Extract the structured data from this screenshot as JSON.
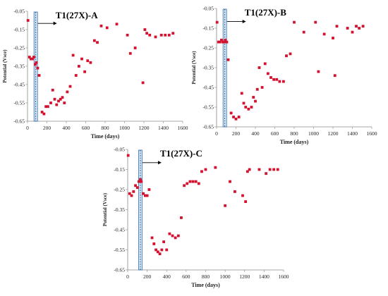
{
  "chart_data": [
    {
      "type": "scatter",
      "title": "T1(27X)-A",
      "xlabel": "Time (days)",
      "ylabel": "Potential (Vsce)",
      "xlim": [
        0,
        1600
      ],
      "ylim": [
        -0.65,
        -0.05
      ],
      "xticks": [
        0,
        200,
        400,
        600,
        800,
        1000,
        1200,
        1400,
        1600
      ],
      "yticks": [
        -0.05,
        -0.15,
        -0.25,
        -0.35,
        -0.45,
        -0.55,
        -0.65
      ],
      "marker_day": 85,
      "color": "#d2122e",
      "x": [
        5,
        20,
        35,
        50,
        65,
        80,
        90,
        105,
        120,
        150,
        170,
        190,
        210,
        240,
        260,
        280,
        300,
        320,
        340,
        360,
        380,
        410,
        440,
        470,
        500,
        530,
        560,
        590,
        620,
        650,
        690,
        720,
        760,
        820,
        920,
        1030,
        1060,
        1110,
        1190,
        1210,
        1230,
        1260,
        1320,
        1380,
        1420,
        1460,
        1500
      ],
      "y": [
        -0.1,
        -0.3,
        -0.31,
        -0.31,
        -0.3,
        -0.34,
        -0.33,
        -0.36,
        -0.4,
        -0.6,
        -0.61,
        -0.57,
        -0.57,
        -0.55,
        -0.48,
        -0.53,
        -0.56,
        -0.54,
        -0.53,
        -0.52,
        -0.55,
        -0.49,
        -0.46,
        -0.29,
        -0.4,
        -0.35,
        -0.31,
        -0.38,
        -0.32,
        -0.33,
        -0.21,
        -0.22,
        -0.13,
        -0.14,
        -0.12,
        -0.18,
        -0.28,
        -0.25,
        -0.44,
        -0.15,
        -0.17,
        -0.18,
        -0.19,
        -0.18,
        -0.18,
        -0.18,
        -0.17
      ]
    },
    {
      "type": "scatter",
      "title": "T1(27X)-B",
      "xlabel": "Time (days)",
      "ylabel": "Potential (Vsce)",
      "xlim": [
        0,
        1600
      ],
      "ylim": [
        -0.65,
        -0.05
      ],
      "xticks": [
        0,
        200,
        400,
        600,
        800,
        1000,
        1200,
        1400,
        1600
      ],
      "yticks": [
        -0.05,
        -0.15,
        -0.25,
        -0.35,
        -0.45,
        -0.55,
        -0.65
      ],
      "marker_day": 85,
      "color": "#d2122e",
      "x": [
        5,
        20,
        35,
        50,
        65,
        80,
        90,
        105,
        120,
        150,
        175,
        200,
        230,
        260,
        280,
        300,
        330,
        360,
        380,
        400,
        420,
        440,
        470,
        500,
        530,
        560,
        590,
        620,
        650,
        690,
        720,
        760,
        800,
        900,
        1020,
        1050,
        1110,
        1200,
        1220,
        1240,
        1350,
        1400,
        1440,
        1470,
        1510
      ],
      "y": [
        -0.12,
        -0.22,
        -0.22,
        -0.21,
        -0.22,
        -0.22,
        -0.21,
        -0.22,
        -0.31,
        -0.58,
        -0.6,
        -0.61,
        -0.6,
        -0.48,
        -0.53,
        -0.55,
        -0.56,
        -0.55,
        -0.5,
        -0.52,
        -0.46,
        -0.35,
        -0.45,
        -0.33,
        -0.38,
        -0.4,
        -0.41,
        -0.41,
        -0.42,
        -0.42,
        -0.29,
        -0.28,
        -0.12,
        -0.17,
        -0.12,
        -0.37,
        -0.18,
        -0.2,
        -0.39,
        -0.14,
        -0.15,
        -0.17,
        -0.14,
        -0.15,
        -0.14
      ]
    },
    {
      "type": "scatter",
      "title": "T1(27X)-C",
      "xlabel": "Time (days)",
      "ylabel": "Potential (Vsce)",
      "xlim": [
        0,
        1600
      ],
      "ylim": [
        -0.65,
        -0.05
      ],
      "xticks": [
        0,
        200,
        400,
        600,
        800,
        1000,
        1200,
        1400,
        1600
      ],
      "yticks": [
        -0.05,
        -0.15,
        -0.25,
        -0.35,
        -0.45,
        -0.55,
        -0.65
      ],
      "marker_day": 130,
      "color": "#d2122e",
      "x": [
        5,
        20,
        40,
        60,
        80,
        100,
        115,
        130,
        140,
        160,
        180,
        200,
        220,
        250,
        270,
        290,
        310,
        330,
        350,
        370,
        400,
        430,
        460,
        490,
        520,
        550,
        580,
        610,
        640,
        670,
        700,
        730,
        760,
        800,
        900,
        1000,
        1050,
        1100,
        1180,
        1210,
        1230,
        1250,
        1350,
        1420,
        1460,
        1500,
        1540
      ],
      "y": [
        -0.08,
        -0.27,
        -0.28,
        -0.26,
        -0.23,
        -0.24,
        -0.21,
        -0.2,
        -0.21,
        -0.27,
        -0.28,
        -0.28,
        -0.25,
        -0.49,
        -0.52,
        -0.55,
        -0.56,
        -0.57,
        -0.55,
        -0.51,
        -0.55,
        -0.47,
        -0.48,
        -0.49,
        -0.48,
        -0.39,
        -0.23,
        -0.22,
        -0.21,
        -0.21,
        -0.21,
        -0.22,
        -0.16,
        -0.15,
        -0.14,
        -0.33,
        -0.21,
        -0.26,
        -0.28,
        -0.31,
        -0.16,
        -0.15,
        -0.15,
        -0.17,
        -0.15,
        -0.15,
        -0.15
      ]
    }
  ]
}
